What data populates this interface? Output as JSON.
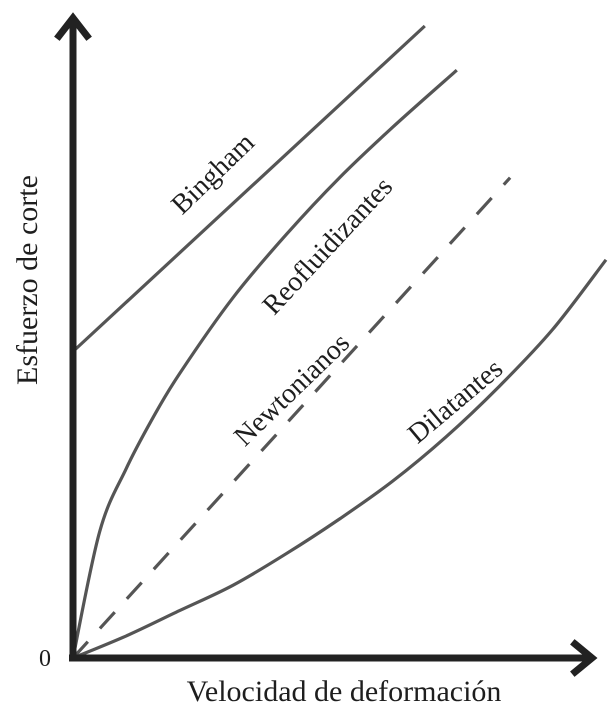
{
  "chart_data": {
    "type": "line",
    "xlabel": "Velocidad de deformación",
    "ylabel": "Esfuerzo de corte",
    "origin_label": "0",
    "xlim": [
      0,
      1
    ],
    "ylim": [
      0,
      1
    ],
    "grid": false,
    "axis_color": "#222222",
    "series_color": "#555555",
    "series": [
      {
        "name": "Bingham",
        "style": "solid",
        "x": [
          0.0,
          0.66
        ],
        "y": [
          0.485,
          1.0
        ]
      },
      {
        "name": "Reofluidizantes",
        "style": "solid",
        "x": [
          0.0,
          0.05,
          0.1,
          0.15,
          0.2,
          0.3,
          0.4,
          0.5,
          0.6,
          0.72
        ],
        "y": [
          0.0,
          0.2,
          0.3,
          0.38,
          0.45,
          0.57,
          0.67,
          0.76,
          0.84,
          0.93
        ]
      },
      {
        "name": "Newtonianos",
        "style": "dashed",
        "x": [
          0.0,
          0.82
        ],
        "y": [
          0.0,
          0.76
        ]
      },
      {
        "name": "Dilatantes",
        "style": "solid",
        "x": [
          0.0,
          0.1,
          0.2,
          0.3,
          0.4,
          0.5,
          0.6,
          0.7,
          0.8,
          0.9,
          1.0
        ],
        "y": [
          0.0,
          0.035,
          0.075,
          0.115,
          0.165,
          0.22,
          0.28,
          0.35,
          0.43,
          0.52,
          0.63
        ]
      }
    ]
  }
}
